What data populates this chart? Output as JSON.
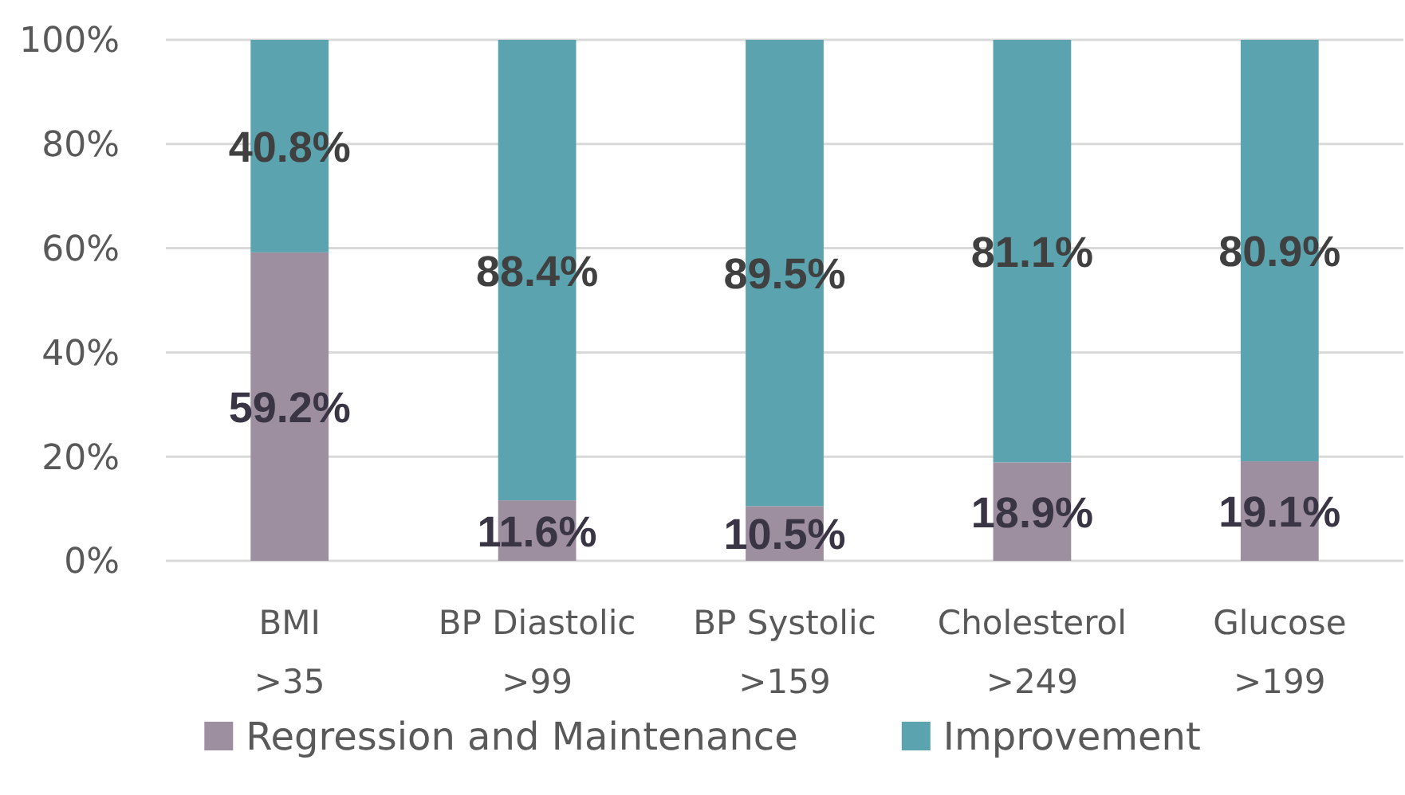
{
  "chart_data": {
    "type": "bar",
    "stacked": true,
    "categories": [
      "BMI\n>35",
      "BP Diastolic\n>99",
      "BP Systolic\n>159",
      "Cholesterol\n>249",
      "Glucose\n>199"
    ],
    "series": [
      {
        "name": "Regression and Maintenance",
        "color": "#9d8f9f",
        "values": [
          59.2,
          11.6,
          10.5,
          18.9,
          19.1
        ],
        "value_labels": [
          "59.2%",
          "11.6%",
          "10.5%",
          "18.9%",
          "19.1%"
        ]
      },
      {
        "name": "Improvement",
        "color": "#5ba3ae",
        "values": [
          40.8,
          88.4,
          89.5,
          81.1,
          80.9
        ],
        "value_labels": [
          "40.8%",
          "88.4%",
          "89.5%",
          "81.1%",
          "80.9%"
        ]
      }
    ],
    "ylim": [
      0,
      100
    ],
    "yticks": [
      {
        "value": 0,
        "label": "0%"
      },
      {
        "value": 20,
        "label": "20%"
      },
      {
        "value": 40,
        "label": "40%"
      },
      {
        "value": 60,
        "label": "60%"
      },
      {
        "value": 80,
        "label": "80%"
      },
      {
        "value": 100,
        "label": "100%"
      }
    ],
    "grid": "y",
    "legend": "bottom"
  }
}
